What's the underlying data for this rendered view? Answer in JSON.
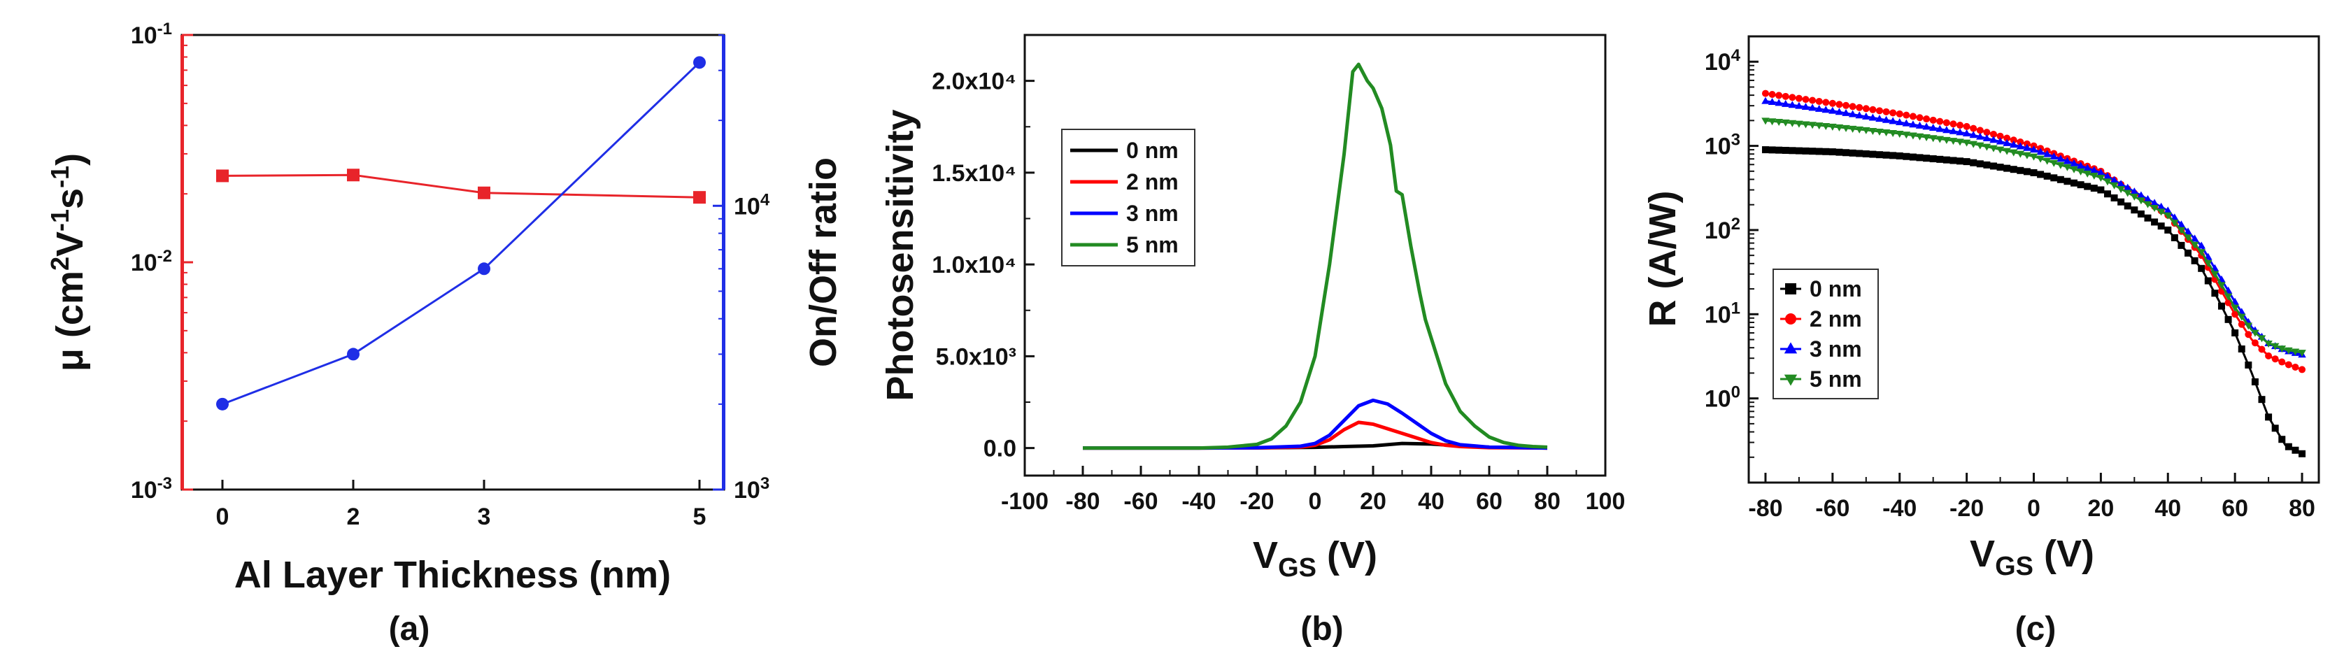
{
  "chart_data": [
    {
      "type": "line",
      "panel_label": "(a)",
      "xlabel": "Al Layer  Thickness (nm)",
      "categories": [
        "0",
        "2",
        "3",
        "5"
      ],
      "ylabel_left": "μ (cm²V⁻¹s⁻¹)",
      "ylabel_right": "On/Off ratio",
      "left_axis": {
        "scale": "log",
        "ylim": [
          0.001,
          0.1
        ],
        "ticks": [
          0.001,
          0.01,
          0.1
        ],
        "tick_labels": [
          [
            "10",
            "-3"
          ],
          [
            "10",
            "-2"
          ],
          [
            "10",
            "-1"
          ]
        ],
        "color": "#e8242a"
      },
      "right_axis": {
        "scale": "log",
        "ylim": [
          1000,
          40000
        ],
        "ticks": [
          1000,
          10000
        ],
        "tick_labels": [
          [
            "10",
            "3"
          ],
          [
            "10",
            "4"
          ]
        ],
        "color": "#1f2ee6"
      },
      "series": [
        {
          "axis": "left",
          "color": "#e8242a",
          "marker": "square",
          "values": [
            0.024,
            0.0242,
            0.0202,
            0.0193
          ]
        },
        {
          "axis": "right",
          "color": "#1f2ee6",
          "marker": "circle",
          "values": [
            2000,
            3000,
            6000,
            32000
          ]
        }
      ]
    },
    {
      "type": "line",
      "panel_label": "(b)",
      "xlabel": "V",
      "xlabel_sub": "GS",
      "xlabel_suffix": " (V)",
      "ylabel": "Photosensitivity",
      "xlim": [
        -100,
        100
      ],
      "ylim": [
        -1500,
        22500
      ],
      "xticks": [
        -100,
        -80,
        -60,
        -40,
        -20,
        0,
        20,
        40,
        60,
        80,
        100
      ],
      "yticks": [
        0,
        5000,
        10000,
        15000,
        20000
      ],
      "ytick_labels": [
        "0.0",
        "5.0x10³",
        "1.0x10⁴",
        "1.5x10⁴",
        "2.0x10⁴"
      ],
      "legend": [
        "0 nm",
        "2 nm",
        "3 nm",
        "5 nm"
      ],
      "legend_position": "top-left",
      "series": [
        {
          "name": "0 nm",
          "color": "#000000",
          "x": [
            -80,
            -40,
            -20,
            0,
            10,
            20,
            30,
            40,
            50,
            60,
            80
          ],
          "y": [
            0,
            0,
            10,
            40,
            80,
            120,
            250,
            220,
            120,
            50,
            0
          ]
        },
        {
          "name": "2 nm",
          "color": "#ff0000",
          "x": [
            -80,
            -40,
            -20,
            -5,
            0,
            5,
            10,
            15,
            20,
            25,
            30,
            35,
            40,
            45,
            50,
            60,
            80
          ],
          "y": [
            0,
            0,
            10,
            50,
            150,
            450,
            1000,
            1400,
            1300,
            1050,
            800,
            550,
            300,
            150,
            80,
            20,
            0
          ]
        },
        {
          "name": "3 nm",
          "color": "#0000ff",
          "x": [
            -80,
            -40,
            -20,
            -5,
            0,
            5,
            10,
            15,
            20,
            25,
            30,
            35,
            40,
            45,
            50,
            60,
            80
          ],
          "y": [
            0,
            0,
            20,
            100,
            250,
            700,
            1500,
            2300,
            2600,
            2400,
            1900,
            1350,
            800,
            400,
            180,
            50,
            0
          ]
        },
        {
          "name": "5 nm",
          "color": "#228b22",
          "x": [
            -80,
            -40,
            -30,
            -20,
            -15,
            -10,
            -5,
            0,
            5,
            10,
            13,
            15,
            18,
            20,
            23,
            26,
            28,
            30,
            33,
            36,
            38,
            40,
            45,
            50,
            55,
            60,
            65,
            70,
            75,
            80
          ],
          "y": [
            0,
            0,
            50,
            200,
            500,
            1200,
            2500,
            5000,
            10000,
            16000,
            20500,
            20900,
            20000,
            19600,
            18500,
            16500,
            14000,
            13800,
            11000,
            8500,
            7000,
            6000,
            3500,
            2000,
            1200,
            600,
            300,
            150,
            80,
            50
          ]
        }
      ]
    },
    {
      "type": "line",
      "panel_label": "(c)",
      "xlabel": "V",
      "xlabel_sub": "GS",
      "xlabel_suffix": " (V)",
      "ylabel": "R (A/W)",
      "xlim": [
        -85,
        85
      ],
      "yscale": "log",
      "ylim": [
        0.1,
        20000
      ],
      "xticks": [
        -80,
        -60,
        -40,
        -20,
        0,
        20,
        40,
        60,
        80
      ],
      "yticks": [
        1,
        10,
        100,
        1000,
        10000
      ],
      "ytick_labels": [
        [
          "10",
          "0"
        ],
        [
          "10",
          "1"
        ],
        [
          "10",
          "2"
        ],
        [
          "10",
          "3"
        ],
        [
          "10",
          "4"
        ]
      ],
      "legend": [
        "0 nm",
        "2 nm",
        "3 nm",
        "5 nm"
      ],
      "legend_position": "bottom-left",
      "series": [
        {
          "name": "0 nm",
          "color": "#000000",
          "marker": "square",
          "x": [
            -80,
            -60,
            -40,
            -20,
            0,
            20,
            40,
            50,
            55,
            60,
            65,
            70,
            75,
            80
          ],
          "y": [
            900,
            850,
            760,
            650,
            480,
            300,
            100,
            35,
            15,
            6,
            2,
            0.6,
            0.28,
            0.22
          ]
        },
        {
          "name": "2 nm",
          "color": "#ff0000",
          "marker": "circle",
          "x": [
            -80,
            -60,
            -40,
            -20,
            0,
            20,
            40,
            50,
            55,
            60,
            65,
            70,
            75,
            80
          ],
          "y": [
            4200,
            3200,
            2400,
            1700,
            1000,
            500,
            150,
            50,
            22,
            10,
            5,
            3.2,
            2.6,
            2.2
          ]
        },
        {
          "name": "3 nm",
          "color": "#0000ff",
          "marker": "triangle-up",
          "x": [
            -80,
            -60,
            -40,
            -20,
            0,
            20,
            40,
            50,
            55,
            60,
            65,
            70,
            75,
            80
          ],
          "y": [
            3400,
            2600,
            1900,
            1400,
            900,
            480,
            170,
            65,
            30,
            14,
            7,
            4.5,
            3.7,
            3.3
          ]
        },
        {
          "name": "5 nm",
          "color": "#228b22",
          "marker": "triangle-down",
          "x": [
            -80,
            -60,
            -40,
            -20,
            0,
            20,
            40,
            50,
            55,
            60,
            65,
            70,
            75,
            80
          ],
          "y": [
            2000,
            1700,
            1400,
            1100,
            750,
            420,
            150,
            55,
            26,
            12,
            6.5,
            4.5,
            3.8,
            3.5
          ]
        }
      ]
    }
  ]
}
